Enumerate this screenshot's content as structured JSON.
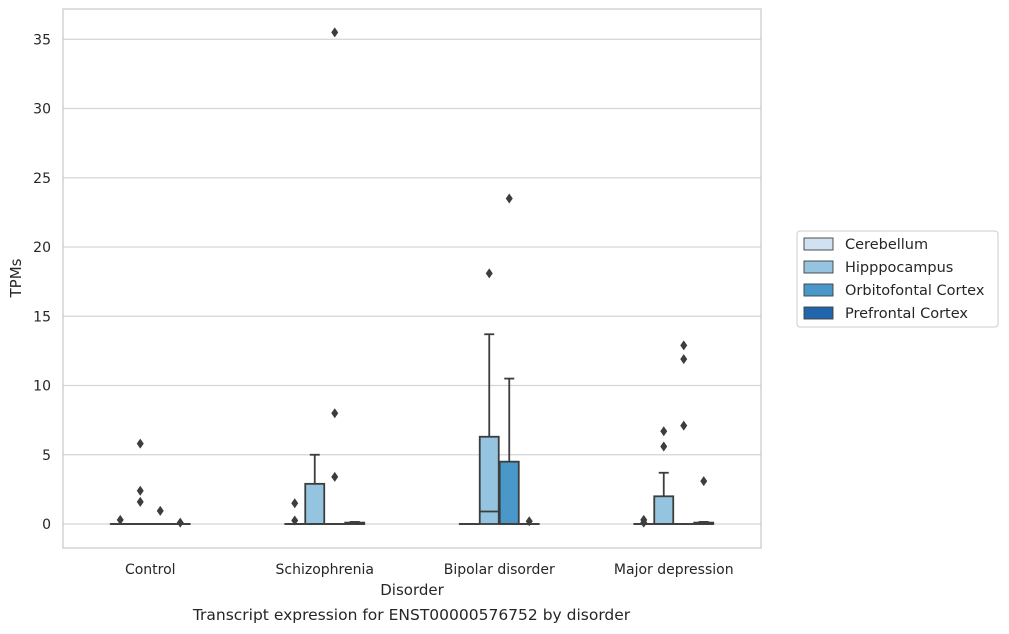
{
  "chart_data": {
    "type": "box",
    "xlabel": "Disorder",
    "ylabel": "TPMs",
    "caption": "Transcript expression for ENST00000576752 by disorder",
    "categories": [
      "Control",
      "Schizophrenia",
      "Bipolar disorder",
      "Major depression"
    ],
    "ylim": [
      -1.7,
      37.2
    ],
    "yticks": [
      0,
      5,
      10,
      15,
      20,
      25,
      30,
      35
    ],
    "grid": true,
    "legend_position": "right",
    "series": [
      {
        "name": "Cerebellum",
        "color": "#d0e1f2",
        "boxes": [
          {
            "q1": 0,
            "median": 0,
            "q3": 0,
            "whisker_low": 0,
            "whisker_high": 0,
            "outliers": [
              0.3
            ]
          },
          {
            "q1": 0,
            "median": 0,
            "q3": 0,
            "whisker_low": 0,
            "whisker_high": 0,
            "outliers": [
              0.25,
              1.5
            ]
          },
          {
            "q1": 0,
            "median": 0,
            "q3": 0,
            "whisker_low": 0,
            "whisker_high": 0,
            "outliers": []
          },
          {
            "q1": 0,
            "median": 0,
            "q3": 0,
            "whisker_low": 0,
            "whisker_high": 0,
            "outliers": [
              0.1,
              0.3
            ]
          }
        ]
      },
      {
        "name": "Hipppocampus",
        "color": "#94c4df",
        "boxes": [
          {
            "q1": 0,
            "median": 0,
            "q3": 0,
            "whisker_low": 0,
            "whisker_high": 0,
            "outliers": [
              1.6,
              2.4,
              5.8
            ]
          },
          {
            "q1": 0,
            "median": 0,
            "q3": 2.9,
            "whisker_low": 0,
            "whisker_high": 5.0,
            "outliers": []
          },
          {
            "q1": 0,
            "median": 0.9,
            "q3": 6.3,
            "whisker_low": 0,
            "whisker_high": 13.7,
            "outliers": [
              18.1
            ]
          },
          {
            "q1": 0,
            "median": 0,
            "q3": 2.0,
            "whisker_low": 0,
            "whisker_high": 3.7,
            "outliers": [
              5.6,
              6.7
            ]
          }
        ]
      },
      {
        "name": "Orbitofontal Cortex",
        "color": "#4a98c9",
        "boxes": [
          {
            "q1": 0,
            "median": 0,
            "q3": 0,
            "whisker_low": 0,
            "whisker_high": 0,
            "outliers": [
              0.95
            ]
          },
          {
            "q1": 0,
            "median": 0,
            "q3": 0,
            "whisker_low": 0,
            "whisker_high": 0,
            "outliers": [
              3.4,
              8.0,
              35.5
            ]
          },
          {
            "q1": 0,
            "median": 0,
            "q3": 4.5,
            "whisker_low": 0,
            "whisker_high": 10.5,
            "outliers": [
              23.5
            ]
          },
          {
            "q1": 0,
            "median": 0,
            "q3": 0,
            "whisker_low": 0,
            "whisker_high": 0,
            "outliers": [
              7.1,
              11.9,
              12.9
            ]
          }
        ]
      },
      {
        "name": "Prefrontal Cortex",
        "color": "#2166ac",
        "boxes": [
          {
            "q1": 0,
            "median": 0,
            "q3": 0,
            "whisker_low": 0,
            "whisker_high": 0,
            "outliers": [
              0.1
            ]
          },
          {
            "q1": 0,
            "median": 0,
            "q3": 0.1,
            "whisker_low": 0,
            "whisker_high": 0.15,
            "outliers": []
          },
          {
            "q1": 0,
            "median": 0,
            "q3": 0,
            "whisker_low": 0,
            "whisker_high": 0,
            "outliers": [
              0.2
            ]
          },
          {
            "q1": 0,
            "median": 0,
            "q3": 0.1,
            "whisker_low": 0,
            "whisker_high": 0.15,
            "outliers": [
              3.1
            ]
          }
        ]
      }
    ]
  }
}
